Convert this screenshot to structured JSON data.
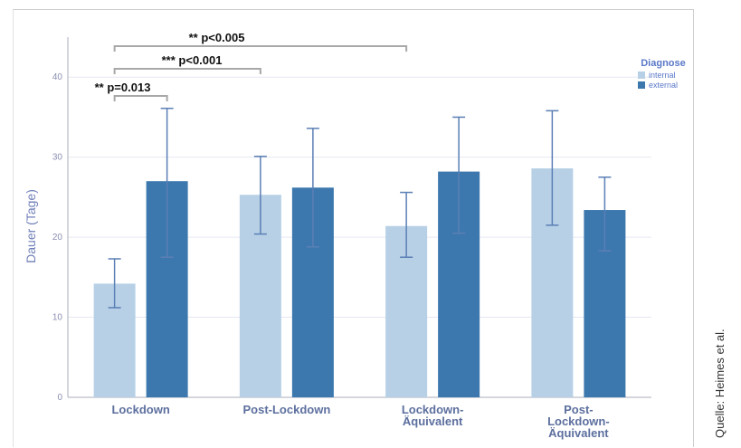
{
  "chart_data": {
    "type": "bar",
    "title": "",
    "xlabel": "",
    "ylabel": "Dauer (Tage)",
    "ylim": [
      0,
      45
    ],
    "yticks": [
      0,
      10,
      20,
      30,
      40
    ],
    "grid": true,
    "categories": [
      [
        "Lockdown"
      ],
      [
        "Post-Lockdown"
      ],
      [
        "Lockdown-",
        "Äquivalent"
      ],
      [
        "Post-",
        "Lockdown-",
        "Äquivalent"
      ]
    ],
    "legend": {
      "title": "Diagnose",
      "placement": "top-right"
    },
    "series": [
      {
        "name": "internal",
        "color": "#b7d0e6",
        "values": [
          14.2,
          25.3,
          21.4,
          28.6
        ],
        "error_low": [
          11.2,
          20.4,
          17.5,
          21.5
        ],
        "error_high": [
          17.3,
          30.1,
          25.6,
          35.8
        ]
      },
      {
        "name": "external",
        "color": "#3c78ae",
        "values": [
          27.0,
          26.2,
          28.2,
          23.4
        ],
        "error_low": [
          17.5,
          18.8,
          20.5,
          18.3
        ],
        "error_high": [
          36.1,
          33.6,
          35.0,
          27.5
        ]
      }
    ],
    "annotations": [
      {
        "label": "** p=0.013",
        "from": [
          0,
          0
        ],
        "to": [
          0,
          1
        ]
      },
      {
        "label": "*** p<0.001",
        "from": [
          0,
          0
        ],
        "to": [
          1,
          0
        ]
      },
      {
        "label": "** p<0.005",
        "from": [
          0,
          0
        ],
        "to": [
          2,
          0
        ]
      }
    ]
  },
  "source_note": "Quelle: Heimes et al."
}
